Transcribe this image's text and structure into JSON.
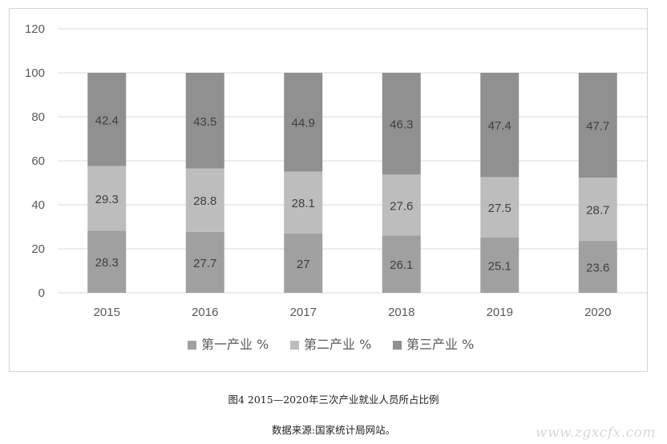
{
  "chart_data": {
    "type": "bar",
    "stacked": true,
    "categories": [
      "2015",
      "2016",
      "2017",
      "2018",
      "2019",
      "2020"
    ],
    "series": [
      {
        "name": "第一产业 %",
        "values": [
          28.3,
          27.7,
          27,
          26.1,
          25.1,
          23.6
        ],
        "color": "#a0a0a0"
      },
      {
        "name": "第二产业 %",
        "values": [
          29.3,
          28.8,
          28.1,
          27.6,
          27.5,
          28.7
        ],
        "color": "#bdbdbd"
      },
      {
        "name": "第三产业 %",
        "values": [
          42.4,
          43.5,
          44.9,
          46.3,
          47.4,
          47.7
        ],
        "color": "#909090"
      }
    ],
    "data_labels": [
      [
        "28.3",
        "27.7",
        "27",
        "26.1",
        "25.1",
        "23.6"
      ],
      [
        "29.3",
        "28.8",
        "28.1",
        "27.6",
        "27.5",
        "28.7"
      ],
      [
        "42.4",
        "43.5",
        "44.9",
        "46.3",
        "47.4",
        "47.7"
      ]
    ],
    "ylim": [
      0,
      120
    ],
    "yticks": [
      "0",
      "20",
      "40",
      "60",
      "80",
      "100",
      "120"
    ],
    "grid": true,
    "legend_position": "bottom",
    "title": "",
    "xlabel": "",
    "ylabel": ""
  },
  "caption": {
    "title": "图4 2015—2020年三次产业就业人员所占比例",
    "source": "数据来源:国家统计局网站。"
  },
  "watermark": "www.zgxcfx.com",
  "colors": {
    "grid": "#d9d9d9",
    "axis_text": "#595959",
    "label_text": "#404040"
  }
}
